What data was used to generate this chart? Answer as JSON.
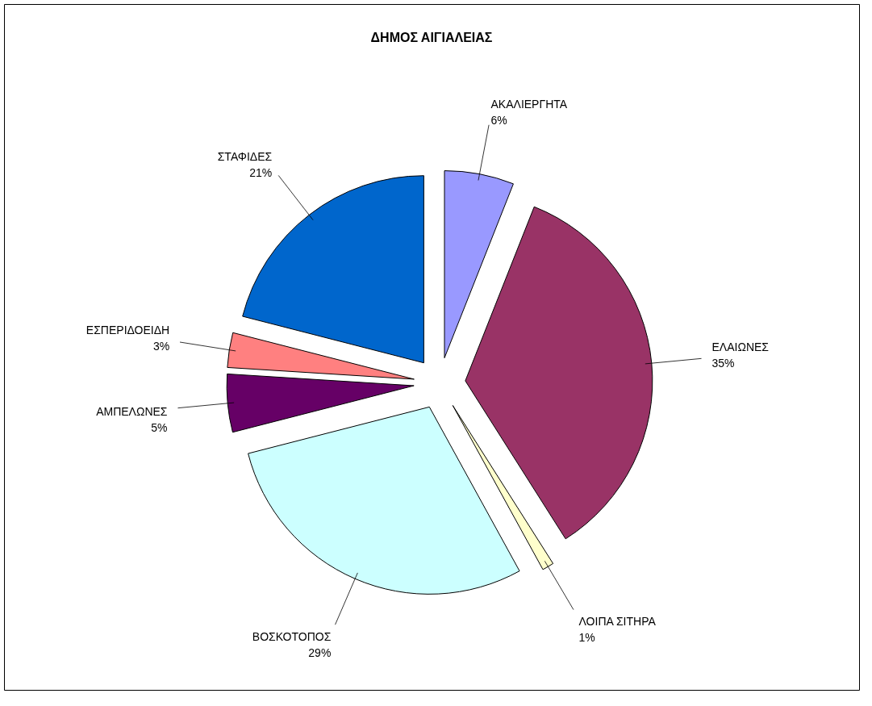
{
  "chart_data": {
    "type": "pie",
    "title": "ΔΗΜΟΣ ΑΙΓΙΑΛΕΙΑΣ",
    "categories": [
      "ΑΚΑΛΙΕΡΓΗΤΑ",
      "ΕΛΑΙΩΝΕΣ",
      "ΛΟΙΠΑ ΣΙΤΗΡΑ",
      "ΒΟΣΚΟΤΟΠΟΣ",
      "ΑΜΠΕΛΩΝΕΣ",
      "ΕΣΠΕΡΙΔΟΕΙΔΗ",
      "ΣΤΑΦΙΔΕΣ"
    ],
    "values": [
      6,
      35,
      1,
      29,
      5,
      3,
      21
    ],
    "value_labels": [
      "6%",
      "35%",
      "1%",
      "29%",
      "5%",
      "3%",
      "21%"
    ],
    "colors": [
      "#9999ff",
      "#993366",
      "#ffffcc",
      "#ccffff",
      "#660066",
      "#ff8080",
      "#0066cc"
    ],
    "legend": false
  }
}
